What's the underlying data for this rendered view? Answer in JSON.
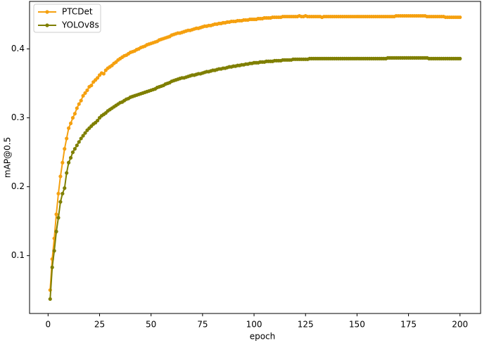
{
  "chart_data": {
    "type": "line",
    "x_label": "epoch",
    "y_label": "mAP@0.5",
    "x": [
      1,
      2,
      3,
      4,
      5,
      6,
      7,
      8,
      9,
      10,
      11,
      12,
      13,
      14,
      15,
      16,
      17,
      18,
      19,
      20,
      21,
      22,
      23,
      24,
      25,
      26,
      27,
      28,
      29,
      30,
      31,
      32,
      33,
      34,
      35,
      36,
      37,
      38,
      39,
      40,
      41,
      42,
      43,
      44,
      45,
      46,
      47,
      48,
      49,
      50,
      51,
      52,
      53,
      54,
      55,
      56,
      57,
      58,
      59,
      60,
      61,
      62,
      63,
      64,
      65,
      66,
      67,
      68,
      69,
      70,
      71,
      72,
      73,
      74,
      75,
      76,
      77,
      78,
      79,
      80,
      81,
      82,
      83,
      84,
      85,
      86,
      87,
      88,
      89,
      90,
      91,
      92,
      93,
      94,
      95,
      96,
      97,
      98,
      99,
      100,
      101,
      102,
      103,
      104,
      105,
      106,
      107,
      108,
      109,
      110,
      111,
      112,
      113,
      114,
      115,
      116,
      117,
      118,
      119,
      120,
      121,
      122,
      123,
      124,
      125,
      126,
      127,
      128,
      129,
      130,
      131,
      132,
      133,
      134,
      135,
      136,
      137,
      138,
      139,
      140,
      141,
      142,
      143,
      144,
      145,
      146,
      147,
      148,
      149,
      150,
      151,
      152,
      153,
      154,
      155,
      156,
      157,
      158,
      159,
      160,
      161,
      162,
      163,
      164,
      165,
      166,
      167,
      168,
      169,
      170,
      171,
      172,
      173,
      174,
      175,
      176,
      177,
      178,
      179,
      180,
      181,
      182,
      183,
      184,
      185,
      186,
      187,
      188,
      189,
      190,
      191,
      192,
      193,
      194,
      195,
      196,
      197,
      198,
      199,
      200
    ],
    "series": [
      {
        "name": "PTCDet",
        "color": "#f5a00f",
        "values": [
          0.05,
          0.095,
          0.125,
          0.16,
          0.19,
          0.215,
          0.235,
          0.255,
          0.27,
          0.285,
          0.292,
          0.3,
          0.306,
          0.314,
          0.32,
          0.325,
          0.332,
          0.336,
          0.34,
          0.345,
          0.347,
          0.352,
          0.355,
          0.358,
          0.362,
          0.365,
          0.364,
          0.369,
          0.372,
          0.374,
          0.376,
          0.379,
          0.381,
          0.384,
          0.386,
          0.388,
          0.39,
          0.391,
          0.393,
          0.395,
          0.396,
          0.397,
          0.399,
          0.4,
          0.402,
          0.403,
          0.404,
          0.406,
          0.407,
          0.408,
          0.409,
          0.41,
          0.411,
          0.413,
          0.414,
          0.415,
          0.416,
          0.417,
          0.418,
          0.42,
          0.421,
          0.422,
          0.423,
          0.423,
          0.424,
          0.425,
          0.426,
          0.427,
          0.427,
          0.428,
          0.429,
          0.43,
          0.43,
          0.431,
          0.432,
          0.433,
          0.433,
          0.434,
          0.434,
          0.435,
          0.436,
          0.436,
          0.437,
          0.437,
          0.438,
          0.438,
          0.439,
          0.439,
          0.44,
          0.44,
          0.44,
          0.441,
          0.441,
          0.441,
          0.442,
          0.442,
          0.442,
          0.443,
          0.443,
          0.443,
          0.443,
          0.444,
          0.444,
          0.444,
          0.445,
          0.445,
          0.445,
          0.445,
          0.446,
          0.446,
          0.446,
          0.446,
          0.446,
          0.447,
          0.447,
          0.447,
          0.447,
          0.447,
          0.447,
          0.447,
          0.447,
          0.448,
          0.447,
          0.447,
          0.448,
          0.447,
          0.447,
          0.447,
          0.447,
          0.447,
          0.447,
          0.447,
          0.446,
          0.447,
          0.447,
          0.447,
          0.447,
          0.447,
          0.447,
          0.447,
          0.447,
          0.447,
          0.447,
          0.447,
          0.447,
          0.447,
          0.447,
          0.447,
          0.447,
          0.447,
          0.447,
          0.447,
          0.447,
          0.447,
          0.447,
          0.447,
          0.447,
          0.447,
          0.447,
          0.447,
          0.447,
          0.447,
          0.447,
          0.447,
          0.447,
          0.447,
          0.447,
          0.447,
          0.448,
          0.448,
          0.448,
          0.448,
          0.448,
          0.448,
          0.448,
          0.448,
          0.448,
          0.448,
          0.448,
          0.448,
          0.448,
          0.448,
          0.448,
          0.447,
          0.447,
          0.447,
          0.447,
          0.447,
          0.447,
          0.447,
          0.447,
          0.447,
          0.446,
          0.446,
          0.446,
          0.446,
          0.446,
          0.446,
          0.446,
          0.446
        ]
      },
      {
        "name": "YOLOv8s",
        "color": "#7f7f00",
        "values": [
          0.037,
          0.083,
          0.107,
          0.135,
          0.155,
          0.178,
          0.19,
          0.198,
          0.22,
          0.235,
          0.242,
          0.25,
          0.255,
          0.26,
          0.265,
          0.27,
          0.274,
          0.278,
          0.282,
          0.285,
          0.288,
          0.291,
          0.293,
          0.296,
          0.3,
          0.303,
          0.305,
          0.307,
          0.31,
          0.312,
          0.314,
          0.316,
          0.318,
          0.32,
          0.322,
          0.323,
          0.325,
          0.327,
          0.328,
          0.33,
          0.331,
          0.332,
          0.333,
          0.334,
          0.335,
          0.336,
          0.337,
          0.338,
          0.339,
          0.34,
          0.341,
          0.342,
          0.344,
          0.345,
          0.346,
          0.347,
          0.349,
          0.35,
          0.351,
          0.353,
          0.354,
          0.355,
          0.356,
          0.357,
          0.358,
          0.358,
          0.359,
          0.36,
          0.361,
          0.362,
          0.362,
          0.363,
          0.364,
          0.364,
          0.365,
          0.366,
          0.367,
          0.367,
          0.368,
          0.369,
          0.369,
          0.37,
          0.371,
          0.371,
          0.372,
          0.372,
          0.373,
          0.374,
          0.374,
          0.375,
          0.375,
          0.376,
          0.376,
          0.377,
          0.377,
          0.378,
          0.378,
          0.379,
          0.379,
          0.38,
          0.38,
          0.38,
          0.381,
          0.381,
          0.381,
          0.382,
          0.382,
          0.382,
          0.382,
          0.383,
          0.383,
          0.383,
          0.383,
          0.384,
          0.384,
          0.384,
          0.384,
          0.384,
          0.385,
          0.385,
          0.385,
          0.385,
          0.385,
          0.385,
          0.385,
          0.385,
          0.386,
          0.386,
          0.386,
          0.386,
          0.386,
          0.386,
          0.386,
          0.386,
          0.386,
          0.386,
          0.386,
          0.386,
          0.386,
          0.386,
          0.386,
          0.386,
          0.386,
          0.386,
          0.386,
          0.386,
          0.386,
          0.386,
          0.386,
          0.386,
          0.386,
          0.386,
          0.386,
          0.386,
          0.386,
          0.386,
          0.386,
          0.386,
          0.386,
          0.386,
          0.386,
          0.386,
          0.386,
          0.386,
          0.387,
          0.387,
          0.387,
          0.387,
          0.387,
          0.387,
          0.387,
          0.387,
          0.387,
          0.387,
          0.387,
          0.387,
          0.387,
          0.387,
          0.387,
          0.387,
          0.387,
          0.387,
          0.387,
          0.387,
          0.386,
          0.386,
          0.386,
          0.386,
          0.386,
          0.386,
          0.386,
          0.386,
          0.386,
          0.386,
          0.386,
          0.386,
          0.386,
          0.386,
          0.386,
          0.386
        ]
      }
    ],
    "xlim": [
      -9,
      210
    ],
    "xticks": [
      0,
      25,
      50,
      75,
      100,
      125,
      150,
      175,
      200
    ],
    "ylim": [
      0.016,
      0.469
    ],
    "yticks": [
      0.1,
      0.2,
      0.3,
      0.4
    ],
    "grid": false,
    "legend": "upper left"
  }
}
